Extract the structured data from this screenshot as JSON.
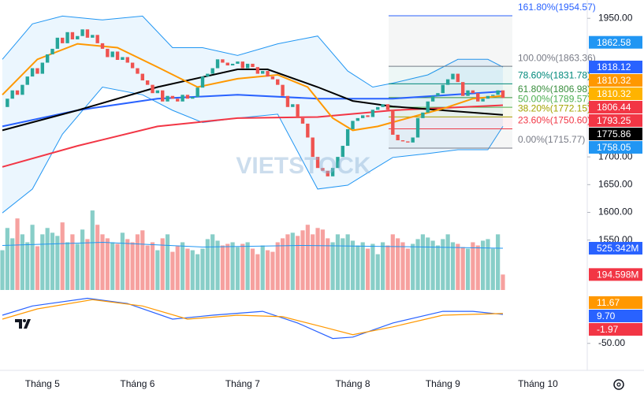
{
  "chart_data": {
    "type": "candlestick",
    "watermark": "VIETSTOCK",
    "categories": [
      null,
      null,
      null,
      null,
      null,
      null,
      null,
      null,
      "Tháng 5",
      null,
      null,
      null,
      null,
      null,
      null,
      null,
      null,
      null,
      null,
      null,
      null,
      null,
      null,
      null,
      null,
      null,
      null,
      "Tháng 6",
      null,
      null,
      null,
      null,
      null,
      null,
      null,
      null,
      null,
      null,
      null,
      null,
      null,
      null,
      null,
      null,
      null,
      null,
      null,
      null,
      "Tháng 7",
      null,
      null,
      null,
      null,
      null,
      null,
      null,
      null,
      null,
      null,
      null,
      null,
      null,
      null,
      null,
      null,
      null,
      null,
      null,
      null,
      null,
      "Tháng 8",
      null,
      null,
      null,
      null,
      null,
      null,
      null,
      null,
      null,
      null,
      null,
      null,
      null,
      null,
      null,
      null,
      null,
      "Tháng 9",
      null,
      null,
      null,
      null,
      null,
      null,
      null,
      null,
      null,
      null,
      null,
      null,
      null,
      null,
      null,
      null,
      null,
      null,
      "Tháng 10",
      null,
      null,
      null,
      null,
      null,
      null,
      null,
      null,
      null
    ],
    "close": [
      1790,
      1805,
      1820,
      1812,
      1830,
      1845,
      1860,
      1850,
      1870,
      1885,
      1895,
      1915,
      1905,
      1925,
      1912,
      1918,
      1930,
      1915,
      1920,
      1905,
      1895,
      1880,
      1890,
      1875,
      1880,
      1870,
      1860,
      1850,
      1838,
      1830,
      1815,
      1820,
      1800,
      1810,
      1805,
      1800,
      1812,
      1805,
      1808,
      1825,
      1845,
      1850,
      1860,
      1876,
      1870,
      1865,
      1868,
      1872,
      1860,
      1868,
      1862,
      1850,
      1855,
      1845,
      1840,
      1830,
      1810,
      1790,
      1795,
      1770,
      1760,
      1735,
      1700,
      1680,
      1675,
      1665,
      1680,
      1700,
      1720,
      1750,
      1765,
      1770,
      1775,
      1772,
      1785,
      1790,
      1795,
      1785,
      1740,
      1730,
      1728,
      1726,
      1735,
      1770,
      1780,
      1800,
      1810,
      1815,
      1830,
      1840,
      1850,
      1835,
      1810,
      1820,
      1815,
      1800,
      1805,
      1810,
      1812,
      1820,
      1806.44,
      null,
      null,
      null,
      null,
      null,
      null,
      null,
      null,
      null,
      null,
      null,
      null,
      null,
      null,
      null,
      null
    ],
    "volume": [
      500,
      780,
      650,
      900,
      700,
      600,
      820,
      550,
      700,
      780,
      720,
      680,
      850,
      600,
      700,
      580,
      760,
      640,
      1000,
      820,
      700,
      650,
      600,
      580,
      720,
      640,
      600,
      700,
      750,
      560,
      600,
      500,
      650,
      700,
      480,
      550,
      600,
      520,
      500,
      450,
      520,
      640,
      700,
      620,
      560,
      580,
      600,
      540,
      580,
      600,
      520,
      450,
      560,
      500,
      480,
      600,
      650,
      700,
      720,
      680,
      750,
      820,
      700,
      780,
      760,
      650,
      600,
      700,
      650,
      700,
      620,
      560,
      600,
      520,
      580,
      450,
      600,
      560,
      700,
      650,
      600,
      520,
      580,
      640,
      700,
      660,
      620,
      560,
      640,
      700,
      600,
      580,
      540,
      520,
      600,
      560,
      620,
      640,
      520,
      700,
      194.598,
      null,
      null,
      null,
      null,
      null,
      null,
      null,
      null,
      null,
      null,
      null,
      null,
      null,
      null,
      null,
      null
    ],
    "up_color": "#26a69a",
    "down_color": "#ef5350",
    "ylim": [
      1460,
      1983
    ],
    "yticks": [
      {
        "value": 1950,
        "label": "1950.00"
      },
      {
        "value": 1700,
        "label": "1700.00"
      },
      {
        "value": 1650,
        "label": "1650.00"
      },
      {
        "value": 1600,
        "label": "1600.00"
      },
      {
        "value": 1550,
        "label": "1550.00"
      }
    ],
    "volume_ylim": [
      0,
      1100
    ],
    "macd_ylim": [
      -65,
      60
    ],
    "macd_yticks": [
      {
        "value": -50,
        "label": "-50.00"
      }
    ],
    "bollinger": {
      "color": "#2196f3",
      "fill": "#e3f2fd",
      "x": [
        0,
        6,
        12,
        20,
        28,
        34,
        40,
        47,
        55,
        63,
        69,
        74,
        78,
        85,
        91,
        97,
        100
      ],
      "upper": [
        1876,
        1940,
        1954,
        1947,
        1954,
        1897,
        1897,
        1883,
        1904,
        1918,
        1855,
        1826,
        1833,
        1848,
        1876,
        1876,
        1862
      ],
      "lower": [
        1599,
        1642,
        1741,
        1826,
        1812,
        1784,
        1762,
        1770,
        1777,
        1642,
        1649,
        1677,
        1699,
        1706,
        1713,
        1713,
        1755
      ]
    },
    "lines": [
      {
        "color": "#f23645",
        "x": [
          0,
          15,
          31,
          47,
          63,
          78,
          100
        ],
        "values": [
          1682,
          1720,
          1755,
          1770,
          1772,
          1784,
          1793.25
        ]
      },
      {
        "color": "#2962ff",
        "x": [
          0,
          15,
          31,
          47,
          63,
          78,
          100
        ],
        "values": [
          1755,
          1784,
          1805,
          1812,
          1805,
          1805,
          1818.12
        ]
      },
      {
        "color": "#000000",
        "x": [
          0,
          15,
          31,
          47,
          53,
          63,
          70,
          78,
          88,
          100
        ],
        "values": [
          1748,
          1784,
          1826,
          1858,
          1858,
          1826,
          1801,
          1791,
          1784,
          1775.86
        ]
      },
      {
        "color": "#ff9800",
        "x": [
          0,
          7,
          15,
          23,
          31,
          39,
          47,
          55,
          61,
          66,
          70,
          75,
          81,
          88,
          94,
          100
        ],
        "values": [
          1812,
          1876,
          1904,
          1897,
          1862,
          1826,
          1841,
          1848,
          1826,
          1770,
          1748,
          1755,
          1770,
          1787,
          1805,
          1810.32
        ]
      }
    ],
    "fib_levels": [
      {
        "value": 1954.57,
        "label": "161.80%(1954.57)",
        "color": "#2962ff"
      },
      {
        "value": 1863.36,
        "label": "100.00%(1863.36)",
        "color": "#787b86"
      },
      {
        "value": 1831.78,
        "label": "78.60%(1831.78)",
        "color": "#00897b"
      },
      {
        "value": 1806.98,
        "label": "61.80%(1806.98)",
        "color": "#388e3c"
      },
      {
        "value": 1789.57,
        "label": "50.00%(1789.57)",
        "color": "#4caf50"
      },
      {
        "value": 1772.15,
        "label": "38.20%(1772.15)",
        "color": "#a3a300"
      },
      {
        "value": 1750.6,
        "label": "23.60%(1750.60)",
        "color": "#f23645"
      },
      {
        "value": 1715.77,
        "label": "0.00%(1715.77)",
        "color": "#787b86"
      }
    ],
    "price_badges": [
      {
        "value": 1862.58,
        "color": "#2196f3"
      },
      {
        "value": 1818.12,
        "color": "#2962ff"
      },
      {
        "value": 1810.32,
        "color": "#ff9800"
      },
      {
        "value": 1810.32,
        "color": "#ffb300"
      },
      {
        "value": 1806.44,
        "color": "#f23645"
      },
      {
        "value": 1793.25,
        "color": "#f23645"
      },
      {
        "value": 1775.86,
        "color": "#000000"
      },
      {
        "value": 1758.05,
        "color": "#2196f3"
      }
    ],
    "volume_ma": {
      "color": "#2196f3",
      "x": [
        0,
        20,
        40,
        60,
        80,
        100
      ],
      "values": [
        560,
        600,
        540,
        560,
        545,
        525.342
      ]
    },
    "volume_badges": [
      {
        "value": 525.342,
        "label": "525.342M",
        "color": "#2962ff"
      },
      {
        "value": 194.598,
        "label": "194.598M",
        "color": "#f23645"
      }
    ],
    "macd": [
      {
        "color": "#2962ff",
        "x": [
          0,
          6,
          17,
          25,
          34,
          42,
          52,
          59,
          66,
          70,
          78,
          88,
          94,
          100
        ],
        "values": [
          8,
          27,
          43,
          32,
          0,
          8,
          16,
          -8,
          -40,
          -37,
          -8,
          16,
          16,
          9.7
        ]
      },
      {
        "color": "#ff9800",
        "x": [
          0,
          7,
          18,
          28,
          37,
          47,
          56,
          64,
          70,
          78,
          88,
          100
        ],
        "values": [
          0,
          21,
          40,
          27,
          0,
          8,
          5,
          -16,
          -32,
          -16,
          8,
          11.67
        ]
      }
    ],
    "macd_badges": [
      {
        "value": 11.67,
        "label": "11.67",
        "color": "#ff9800"
      },
      {
        "value": 9.7,
        "label": "9.70",
        "color": "#2962ff"
      },
      {
        "value": -1.97,
        "label": "-1.97",
        "color": "#f23645"
      }
    ]
  }
}
